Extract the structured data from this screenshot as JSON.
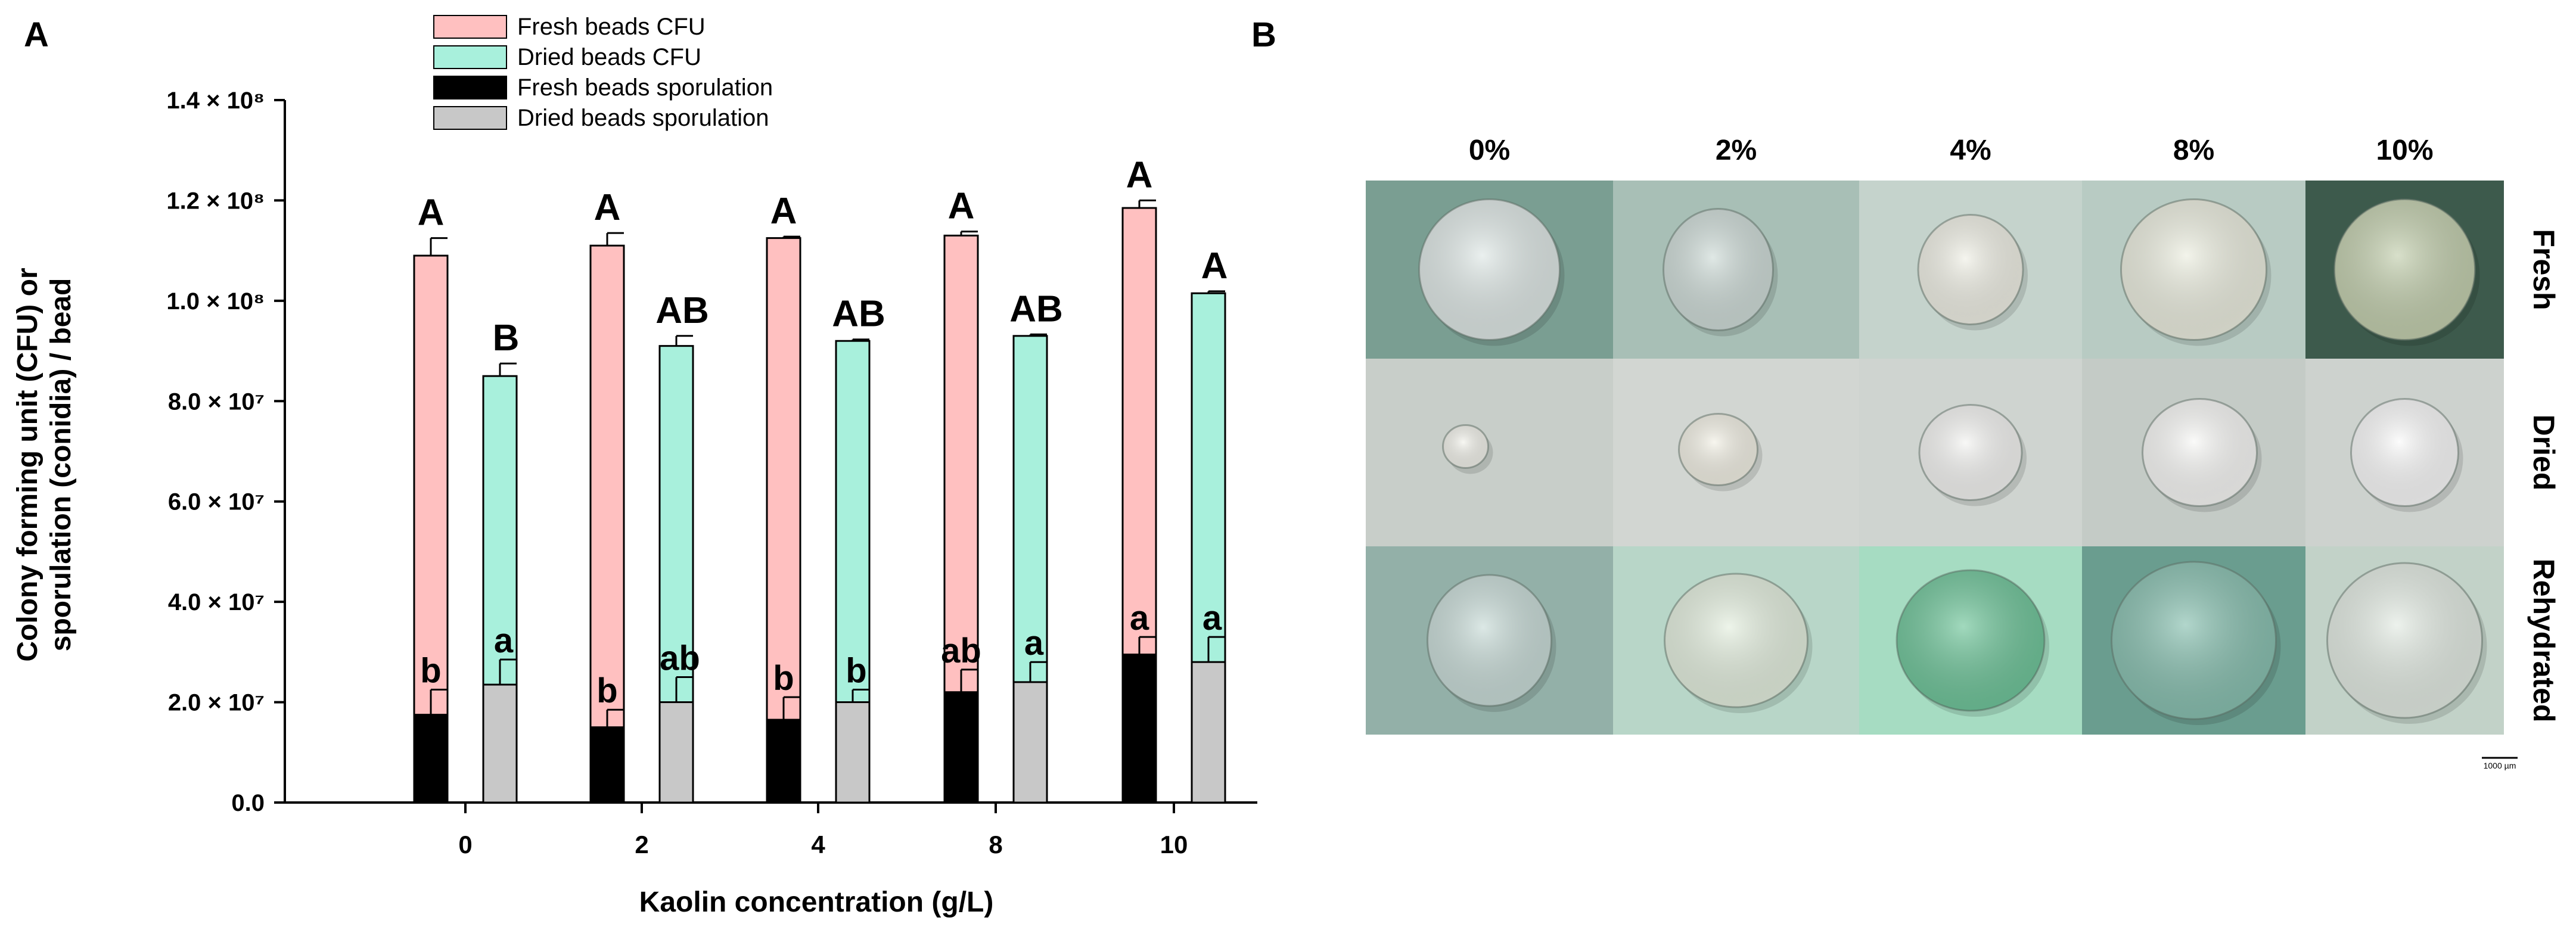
{
  "panel_a_label": "A",
  "panel_b_label": "B",
  "chart_data": {
    "type": "bar",
    "stacked_within_group": true,
    "xlabel": "Kaolin concentration (g/L)",
    "ylabel_line1": "Colony forming unit (CFU) or",
    "ylabel_line2": "sporulation (conidia) / bead",
    "ylim": [
      0,
      140000000
    ],
    "categories": [
      "0",
      "2",
      "4",
      "8",
      "10"
    ],
    "y_ticks": [
      {
        "value": 0,
        "label": "0.0"
      },
      {
        "value": 20000000,
        "label": "2.0 × 10⁷"
      },
      {
        "value": 40000000,
        "label": "4.0 × 10⁷"
      },
      {
        "value": 60000000,
        "label": "6.0 × 10⁷"
      },
      {
        "value": 80000000,
        "label": "8.0 × 10⁷"
      },
      {
        "value": 100000000,
        "label": "1.0 × 10⁸"
      },
      {
        "value": 120000000,
        "label": "1.2 × 10⁸"
      },
      {
        "value": 140000000,
        "label": "1.4 × 10⁸"
      }
    ],
    "series": [
      {
        "name": "Fresh beads CFU",
        "color": "#ffc0c0",
        "values": [
          109000000,
          111000000,
          112500000,
          113000000,
          118500000
        ],
        "errors": [
          3500000,
          2500000,
          300000,
          800000,
          1500000
        ]
      },
      {
        "name": "Dried beads CFU",
        "color": "#a8f0dc",
        "values": [
          85000000,
          91000000,
          92000000,
          93000000,
          101500000
        ],
        "errors": [
          2500000,
          2000000,
          300000,
          300000,
          400000
        ]
      },
      {
        "name": "Fresh beads sporulation",
        "color": "#000000",
        "values": [
          17500000,
          15000000,
          16500000,
          22000000,
          29500000
        ],
        "errors": [
          5000000,
          3500000,
          4500000,
          4500000,
          3500000
        ]
      },
      {
        "name": "Dried beads sporulation",
        "color": "#c8c8c8",
        "values": [
          23500000,
          20000000,
          20000000,
          24000000,
          28000000
        ],
        "errors": [
          5000000,
          5000000,
          2500000,
          4000000,
          5000000
        ]
      }
    ],
    "letters": {
      "fresh_cfu": [
        "A",
        "A",
        "A",
        "A",
        "A"
      ],
      "dried_cfu": [
        "B",
        "AB",
        "AB",
        "AB",
        "A"
      ],
      "fresh_sporulation": [
        "b",
        "b",
        "b",
        "ab",
        "a"
      ],
      "dried_sporulation": [
        "a",
        "ab",
        "b",
        "a",
        "a"
      ]
    },
    "legend_position": "top-center"
  },
  "panel_b": {
    "columns": [
      "0%",
      "2%",
      "4%",
      "8%",
      "10%"
    ],
    "rows": [
      "Fresh",
      "Dried",
      "Rehydrated"
    ],
    "scale_bar_label": "1000 µm"
  }
}
